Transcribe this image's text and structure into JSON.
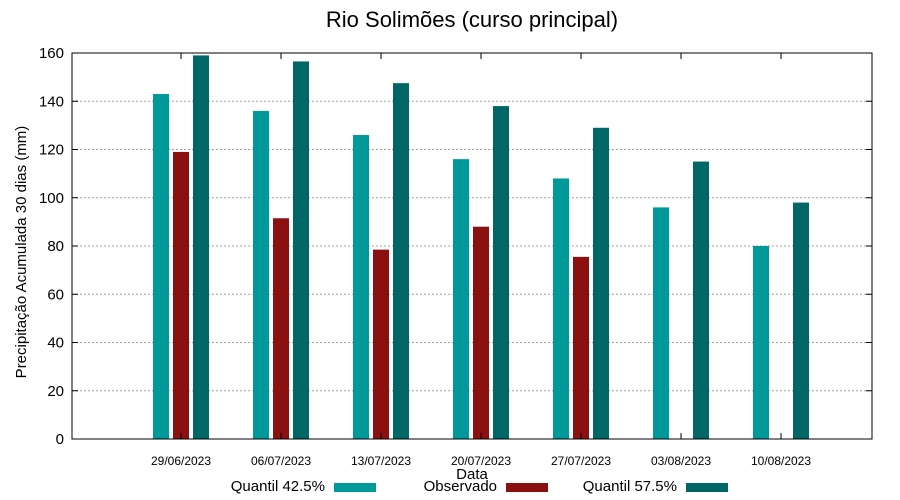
{
  "chart_data": {
    "type": "bar",
    "title": "Rio Solimões (curso principal)",
    "xlabel": "Data",
    "ylabel": "Precipitação Acumulada 30 dias (mm)",
    "ylim": [
      0,
      160
    ],
    "yticks": [
      0,
      20,
      40,
      60,
      80,
      100,
      120,
      140,
      160
    ],
    "grid": true,
    "legend_position": "bottom",
    "categories": [
      "29/06/2023",
      "06/07/2023",
      "13/07/2023",
      "20/07/2023",
      "27/07/2023",
      "03/08/2023",
      "10/08/2023"
    ],
    "series": [
      {
        "name": "Quantil 42.5%",
        "color": "#009999",
        "values": [
          143,
          136,
          126,
          116,
          108,
          96,
          80
        ]
      },
      {
        "name": "Observado",
        "color": "#8b1010",
        "values": [
          119,
          91.5,
          78.5,
          88,
          75.5,
          null,
          null
        ]
      },
      {
        "name": "Quantil 57.5%",
        "color": "#006666",
        "values": [
          159,
          156.5,
          147.5,
          138,
          129,
          115,
          98
        ]
      }
    ]
  }
}
